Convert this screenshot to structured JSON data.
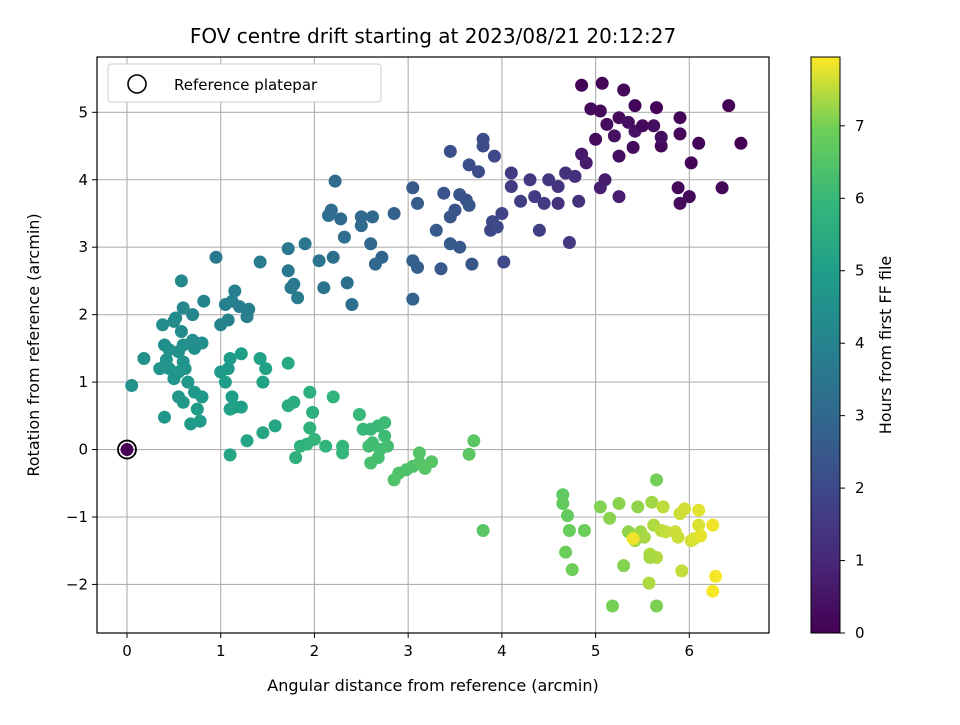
{
  "chart_data": {
    "type": "scatter",
    "title": "FOV centre drift starting at 2023/08/21 20:12:27",
    "xlabel": "Angular distance from reference (arcmin)",
    "ylabel": "Rotation from reference (arcmin)",
    "xlim": [
      -0.32,
      6.85
    ],
    "ylim": [
      -2.72,
      5.82
    ],
    "xticks": [
      0,
      1,
      2,
      3,
      4,
      5,
      6
    ],
    "yticks": [
      -2,
      -1,
      0,
      1,
      2,
      3,
      4,
      5
    ],
    "grid": true,
    "colormap": "viridis",
    "colorbar": {
      "label": "Hours from first FF file",
      "range": [
        0,
        7.95
      ],
      "ticks": [
        0,
        1,
        2,
        3,
        4,
        5,
        6,
        7
      ]
    },
    "legend": {
      "placement": "upper-left",
      "entries": [
        "Reference platepar"
      ]
    },
    "reference_point": {
      "x": 0,
      "y": 0
    },
    "points": [
      [
        4.85,
        5.4,
        0.1
      ],
      [
        5.07,
        5.43,
        0.1
      ],
      [
        5.3,
        5.33,
        0.15
      ],
      [
        4.95,
        5.05,
        0.2
      ],
      [
        5.05,
        5.02,
        0.2
      ],
      [
        5.25,
        4.92,
        0.25
      ],
      [
        5.12,
        4.82,
        0.3
      ],
      [
        5.35,
        4.85,
        0.35
      ],
      [
        5.2,
        4.65,
        0.4
      ],
      [
        5.42,
        4.72,
        0.45
      ],
      [
        5.65,
        5.07,
        0.05
      ],
      [
        5.42,
        5.1,
        0.1
      ],
      [
        5.9,
        4.92,
        0.1
      ],
      [
        6.42,
        5.1,
        0.05
      ],
      [
        6.55,
        4.54,
        0.0
      ],
      [
        6.1,
        4.54,
        0.1
      ],
      [
        5.9,
        4.68,
        0.15
      ],
      [
        5.7,
        4.5,
        0.2
      ],
      [
        5.5,
        4.8,
        0.2
      ],
      [
        5.4,
        4.48,
        0.25
      ],
      [
        5.62,
        4.8,
        0.3
      ],
      [
        5.7,
        4.63,
        0.3
      ],
      [
        6.02,
        4.25,
        0.1
      ],
      [
        5.25,
        4.35,
        0.35
      ],
      [
        5.0,
        4.6,
        0.25
      ],
      [
        4.85,
        4.38,
        0.6
      ],
      [
        4.9,
        4.25,
        0.7
      ],
      [
        5.1,
        4.0,
        0.7
      ],
      [
        5.05,
        3.88,
        0.8
      ],
      [
        5.25,
        3.75,
        0.75
      ],
      [
        5.88,
        3.88,
        0.2
      ],
      [
        6.0,
        3.75,
        0.2
      ],
      [
        5.9,
        3.65,
        0.25
      ],
      [
        6.35,
        3.88,
        0.15
      ],
      [
        4.78,
        4.05,
        1.2
      ],
      [
        4.68,
        4.1,
        1.3
      ],
      [
        4.6,
        3.9,
        1.35
      ],
      [
        4.5,
        4.0,
        1.45
      ],
      [
        4.3,
        4.0,
        1.45
      ],
      [
        4.1,
        3.9,
        1.6
      ],
      [
        4.1,
        4.1,
        1.6
      ],
      [
        4.35,
        3.75,
        1.55
      ],
      [
        4.45,
        3.65,
        1.6
      ],
      [
        4.2,
        3.68,
        1.7
      ],
      [
        4.0,
        3.5,
        1.8
      ],
      [
        3.88,
        3.25,
        1.9
      ],
      [
        4.4,
        3.25,
        1.7
      ],
      [
        4.72,
        3.07,
        1.5
      ],
      [
        4.82,
        3.68,
        1.3
      ],
      [
        4.6,
        3.65,
        1.3
      ],
      [
        3.8,
        4.6,
        2.1
      ],
      [
        3.8,
        4.5,
        2.1
      ],
      [
        3.92,
        4.35,
        2.0
      ],
      [
        3.75,
        4.12,
        2.1
      ],
      [
        3.65,
        4.22,
        2.15
      ],
      [
        3.45,
        4.42,
        2.2
      ],
      [
        3.38,
        3.8,
        2.3
      ],
      [
        3.55,
        3.78,
        2.3
      ],
      [
        3.62,
        3.7,
        2.2
      ],
      [
        3.5,
        3.55,
        2.35
      ],
      [
        3.45,
        3.45,
        2.4
      ],
      [
        3.3,
        3.25,
        2.5
      ],
      [
        3.65,
        3.62,
        2.4
      ],
      [
        3.9,
        3.38,
        2.0
      ],
      [
        4.02,
        2.78,
        2.0
      ],
      [
        3.95,
        3.3,
        2.05
      ],
      [
        3.68,
        2.75,
        2.4
      ],
      [
        3.35,
        2.68,
        2.5
      ],
      [
        3.55,
        3.0,
        2.45
      ],
      [
        3.45,
        3.05,
        2.55
      ],
      [
        3.05,
        3.88,
        2.5
      ],
      [
        3.1,
        3.65,
        2.6
      ],
      [
        3.1,
        2.7,
        2.7
      ],
      [
        3.05,
        2.8,
        2.7
      ],
      [
        3.05,
        2.23,
        2.8
      ],
      [
        2.85,
        3.5,
        2.8
      ],
      [
        2.72,
        2.85,
        2.9
      ],
      [
        2.65,
        2.75,
        3.0
      ],
      [
        2.6,
        3.05,
        3.0
      ],
      [
        2.5,
        3.32,
        3.05
      ],
      [
        2.5,
        3.45,
        3.0
      ],
      [
        2.62,
        3.45,
        3.0
      ],
      [
        2.28,
        3.42,
        3.1
      ],
      [
        2.18,
        3.55,
        3.15
      ],
      [
        2.15,
        3.47,
        3.2
      ],
      [
        2.32,
        3.15,
        3.2
      ],
      [
        2.2,
        2.85,
        3.25
      ],
      [
        2.22,
        3.98,
        3.1
      ],
      [
        2.05,
        2.8,
        3.35
      ],
      [
        2.35,
        2.47,
        3.3
      ],
      [
        2.4,
        2.15,
        3.3
      ],
      [
        2.1,
        2.4,
        3.35
      ],
      [
        1.9,
        3.05,
        3.5
      ],
      [
        1.72,
        2.98,
        3.55
      ],
      [
        1.72,
        2.65,
        3.6
      ],
      [
        1.78,
        2.45,
        3.6
      ],
      [
        1.75,
        2.4,
        3.65
      ],
      [
        1.82,
        2.25,
        3.7
      ],
      [
        1.42,
        2.78,
        3.7
      ],
      [
        1.3,
        2.08,
        3.85
      ],
      [
        1.2,
        2.12,
        3.8
      ],
      [
        1.28,
        1.97,
        3.85
      ],
      [
        1.15,
        2.35,
        3.9
      ],
      [
        1.12,
        2.2,
        3.9
      ],
      [
        1.05,
        2.15,
        3.95
      ],
      [
        1.08,
        1.92,
        4.0
      ],
      [
        1.0,
        1.85,
        4.0
      ],
      [
        0.95,
        2.85,
        3.6
      ],
      [
        0.82,
        2.2,
        4.05
      ],
      [
        0.7,
        2.0,
        4.15
      ],
      [
        0.6,
        2.1,
        4.2
      ],
      [
        0.58,
        2.5,
        4.2
      ],
      [
        0.52,
        1.95,
        4.3
      ],
      [
        0.5,
        1.9,
        4.35
      ],
      [
        0.38,
        1.85,
        4.35
      ],
      [
        0.58,
        1.75,
        4.3
      ],
      [
        0.7,
        1.62,
        4.4
      ],
      [
        0.72,
        1.5,
        4.45
      ],
      [
        0.8,
        1.58,
        4.4
      ],
      [
        0.6,
        1.55,
        4.5
      ],
      [
        0.55,
        1.45,
        4.5
      ],
      [
        0.4,
        1.55,
        4.45
      ],
      [
        0.45,
        1.48,
        4.5
      ],
      [
        0.42,
        1.33,
        4.6
      ],
      [
        0.35,
        1.2,
        4.6
      ],
      [
        0.45,
        1.2,
        4.6
      ],
      [
        0.5,
        1.05,
        4.65
      ],
      [
        0.6,
        1.3,
        4.6
      ],
      [
        0.62,
        1.2,
        4.65
      ],
      [
        0.55,
        1.15,
        4.7
      ],
      [
        0.65,
        1.0,
        4.7
      ],
      [
        0.18,
        1.35,
        4.5
      ],
      [
        0.05,
        0.95,
        4.55
      ],
      [
        0.4,
        0.48,
        4.7
      ],
      [
        0.55,
        0.78,
        4.7
      ],
      [
        0.72,
        0.85,
        4.8
      ],
      [
        0.6,
        0.7,
        4.8
      ],
      [
        0.68,
        0.38,
        4.85
      ],
      [
        0.8,
        0.78,
        4.85
      ],
      [
        0.78,
        0.42,
        4.9
      ],
      [
        0.75,
        0.6,
        4.9
      ],
      [
        1.0,
        1.15,
        4.85
      ],
      [
        1.1,
        1.35,
        4.9
      ],
      [
        1.08,
        1.2,
        4.9
      ],
      [
        1.05,
        1.0,
        4.95
      ],
      [
        1.12,
        0.78,
        5.0
      ],
      [
        1.15,
        0.63,
        5.05
      ],
      [
        1.22,
        0.63,
        5.05
      ],
      [
        1.1,
        0.6,
        5.1
      ],
      [
        1.22,
        1.42,
        5.0
      ],
      [
        1.42,
        1.35,
        5.05
      ],
      [
        1.48,
        1.2,
        5.1
      ],
      [
        1.45,
        1.0,
        5.15
      ],
      [
        1.28,
        0.13,
        5.2
      ],
      [
        1.1,
        -0.08,
        5.25
      ],
      [
        1.58,
        0.35,
        5.3
      ],
      [
        1.45,
        0.25,
        5.3
      ],
      [
        1.72,
        1.28,
        5.4
      ],
      [
        1.78,
        0.7,
        5.5
      ],
      [
        1.72,
        0.65,
        5.5
      ],
      [
        1.95,
        0.85,
        5.6
      ],
      [
        1.98,
        0.55,
        5.65
      ],
      [
        1.95,
        0.32,
        5.7
      ],
      [
        1.92,
        0.08,
        5.8
      ],
      [
        2.0,
        0.15,
        5.85
      ],
      [
        1.8,
        -0.12,
        5.7
      ],
      [
        1.85,
        0.05,
        5.75
      ],
      [
        2.12,
        0.05,
        5.85
      ],
      [
        2.2,
        0.78,
        5.8
      ],
      [
        2.3,
        0.05,
        5.9
      ],
      [
        2.3,
        -0.05,
        5.9
      ],
      [
        2.48,
        0.52,
        5.95
      ],
      [
        2.52,
        0.3,
        6.0
      ],
      [
        2.6,
        0.3,
        6.0
      ],
      [
        2.68,
        0.35,
        6.05
      ],
      [
        2.75,
        0.4,
        6.1
      ],
      [
        2.75,
        0.2,
        6.1
      ],
      [
        2.62,
        0.1,
        6.15
      ],
      [
        2.58,
        0.05,
        6.2
      ],
      [
        2.7,
        0.0,
        6.2
      ],
      [
        2.78,
        0.05,
        6.25
      ],
      [
        2.68,
        -0.12,
        6.25
      ],
      [
        2.6,
        -0.2,
        6.3
      ],
      [
        2.98,
        -0.3,
        6.4
      ],
      [
        3.05,
        -0.25,
        6.45
      ],
      [
        2.9,
        -0.35,
        6.4
      ],
      [
        2.85,
        -0.45,
        6.45
      ],
      [
        3.12,
        -0.05,
        6.5
      ],
      [
        3.12,
        -0.2,
        6.5
      ],
      [
        3.18,
        -0.28,
        6.55
      ],
      [
        3.25,
        -0.18,
        6.55
      ],
      [
        3.7,
        0.13,
        6.6
      ],
      [
        3.65,
        -0.07,
        6.65
      ],
      [
        3.8,
        -1.2,
        6.6
      ],
      [
        4.65,
        -0.67,
        6.7
      ],
      [
        4.65,
        -0.8,
        6.75
      ],
      [
        4.7,
        -0.98,
        6.8
      ],
      [
        4.72,
        -1.2,
        6.85
      ],
      [
        4.68,
        -1.52,
        6.9
      ],
      [
        4.75,
        -1.78,
        6.95
      ],
      [
        4.88,
        -1.2,
        6.9
      ],
      [
        5.18,
        -2.32,
        7.0
      ],
      [
        5.65,
        -2.32,
        7.05
      ],
      [
        5.65,
        -0.45,
        7.0
      ],
      [
        5.3,
        -1.72,
        7.1
      ],
      [
        5.05,
        -0.85,
        7.1
      ],
      [
        5.25,
        -0.8,
        7.15
      ],
      [
        5.15,
        -1.02,
        7.15
      ],
      [
        5.35,
        -1.22,
        7.2
      ],
      [
        5.42,
        -1.35,
        7.3
      ],
      [
        5.45,
        -0.85,
        7.2
      ],
      [
        5.48,
        -1.22,
        7.3
      ],
      [
        5.52,
        -1.3,
        7.35
      ],
      [
        5.6,
        -0.78,
        7.3
      ],
      [
        5.62,
        -1.12,
        7.4
      ],
      [
        5.58,
        -1.55,
        7.4
      ],
      [
        5.65,
        -1.6,
        7.45
      ],
      [
        5.7,
        -1.2,
        7.5
      ],
      [
        5.72,
        -0.85,
        7.5
      ],
      [
        5.75,
        -1.22,
        7.55
      ],
      [
        5.85,
        -1.22,
        7.6
      ],
      [
        5.88,
        -1.3,
        7.6
      ],
      [
        5.9,
        -0.95,
        7.6
      ],
      [
        5.95,
        -0.88,
        7.65
      ],
      [
        5.92,
        -1.8,
        7.55
      ],
      [
        6.02,
        -1.35,
        7.65
      ],
      [
        6.05,
        -1.32,
        7.7
      ],
      [
        6.1,
        -0.9,
        7.75
      ],
      [
        6.1,
        -1.12,
        7.7
      ],
      [
        6.12,
        -1.28,
        7.8
      ],
      [
        6.25,
        -1.12,
        7.85
      ],
      [
        6.28,
        -1.88,
        7.9
      ],
      [
        6.25,
        -2.1,
        7.9
      ],
      [
        5.57,
        -1.98,
        7.4
      ],
      [
        5.58,
        -1.6,
        7.35
      ],
      [
        5.4,
        -1.32,
        7.85
      ]
    ]
  }
}
